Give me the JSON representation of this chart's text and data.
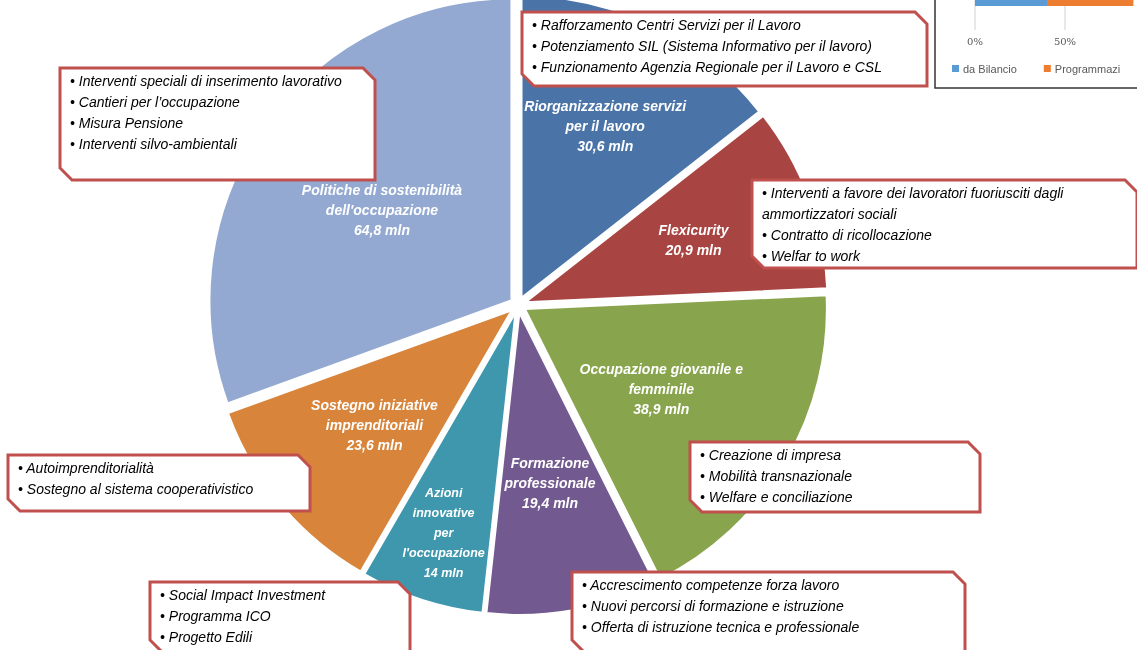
{
  "chart_data": [
    {
      "type": "pie",
      "categories": [
        "Riorganizzazione servizi per il lavoro",
        "Flexicurity",
        "Occupazione giovanile e femminile",
        "Formazione professionale",
        "Azioni innovative per l'occupazione",
        "Sostegno iniziative imprenditoriali",
        "Politiche di sostenibilità dell'occupazione"
      ],
      "values": [
        30.6,
        20.9,
        38.9,
        19.4,
        14,
        23.6,
        64.8
      ],
      "value_labels": [
        "30,6 mln",
        "20,9 mln",
        "38,9 mln",
        "19,4 mln",
        "14 mln",
        "23,6 mln",
        "64,8 mln"
      ],
      "colors": [
        "#4a74a8",
        "#a84542",
        "#88a44c",
        "#72598f",
        "#3f97ad",
        "#d8843b",
        "#93a9d1"
      ],
      "annotations": [
        "• Rafforzamento Centri Servizi per il Lavoro\n• Potenziamento SIL (Sistema Informativo per il lavoro)\n• Funzionamento Agenzia Regionale per il Lavoro e CSL",
        "• Interventi a favore dei lavoratori fuoriusciti dagli ammortizzatori sociali\n• Contratto di ricollocazione\n• Welfar to work",
        "• Creazione di impresa\n• Mobilità transnazionale\n• Welfare e conciliazione",
        "• Accrescimento competenze forza lavoro\n• Nuovi percorsi di formazione e istruzione\n• Offerta di istruzione tecnica e professionale",
        "• Social Impact Investment\n• Programma ICO\n• Progetto Edili",
        "• Autoimprenditorialità\n• Sostegno al sistema cooperativistico",
        "• Interventi speciali di inserimento lavorativo\n• Cantieri per l’occupazione\n• Misura Pensione\n• Interventi silvo-ambientali"
      ]
    },
    {
      "type": "bar",
      "orientation": "horizontal",
      "stacked": true,
      "categories": [
        null
      ],
      "series": [
        {
          "name": "da Bilancio",
          "color": "#5b9bd5",
          "values": [
            40
          ]
        },
        {
          "name": "Programmazi",
          "color": "#ed7d31",
          "values": [
            48
          ]
        }
      ],
      "xlim": [
        0,
        90
      ],
      "xticks": [
        {
          "value": 0,
          "label": "0%"
        },
        {
          "value": 50,
          "label": "50%"
        }
      ],
      "grid": "x",
      "legend": "bottom"
    }
  ]
}
